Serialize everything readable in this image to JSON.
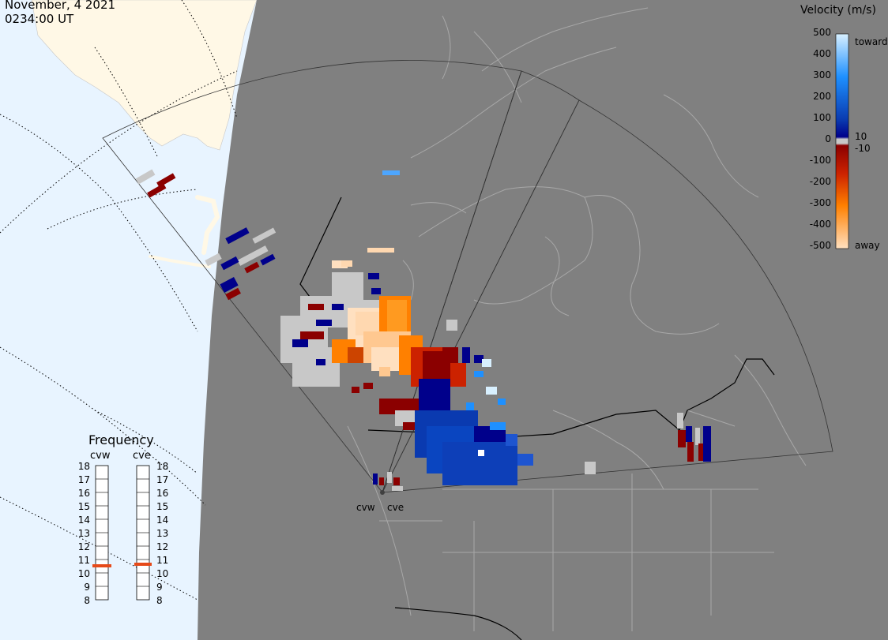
{
  "header": {
    "date": "November, 4 2021",
    "time": "0234:00 UT"
  },
  "colorbar": {
    "title": "Velocity (m/s)",
    "ticks": [
      "500",
      "400",
      "300",
      "200",
      "100",
      "0",
      "-100",
      "-200",
      "-300",
      "-400",
      "-500"
    ],
    "label_toward": "toward",
    "label_away": "away",
    "label_pos_threshold": "10",
    "label_neg_threshold": "-10",
    "colors": {
      "toward_max": "#d8f0ff",
      "toward_mid": "#1e90ff",
      "toward_min": "#00008b",
      "ground_scatter": "#c8c8c8",
      "away_min": "#8b0000",
      "away_mid": "#ff8000",
      "away_max": "#ffe0c0"
    }
  },
  "frequency": {
    "title": "Frequency",
    "radars": [
      {
        "name": "cvw",
        "value_mhz": 10.8
      },
      {
        "name": "cve",
        "value_mhz": 10.9
      }
    ],
    "scale": [
      "18",
      "17",
      "16",
      "15",
      "14",
      "13",
      "12",
      "11",
      "10",
      "9",
      "8"
    ],
    "indicator_color": "#e64a19"
  },
  "sites": [
    {
      "label": "cvw"
    },
    {
      "label": "cve"
    }
  ],
  "map_colors": {
    "night": "#808080",
    "ocean_day": "#e8f4ff",
    "land_day": "#fff8e6",
    "coast": "#a8a8a8",
    "border": "#000000"
  }
}
